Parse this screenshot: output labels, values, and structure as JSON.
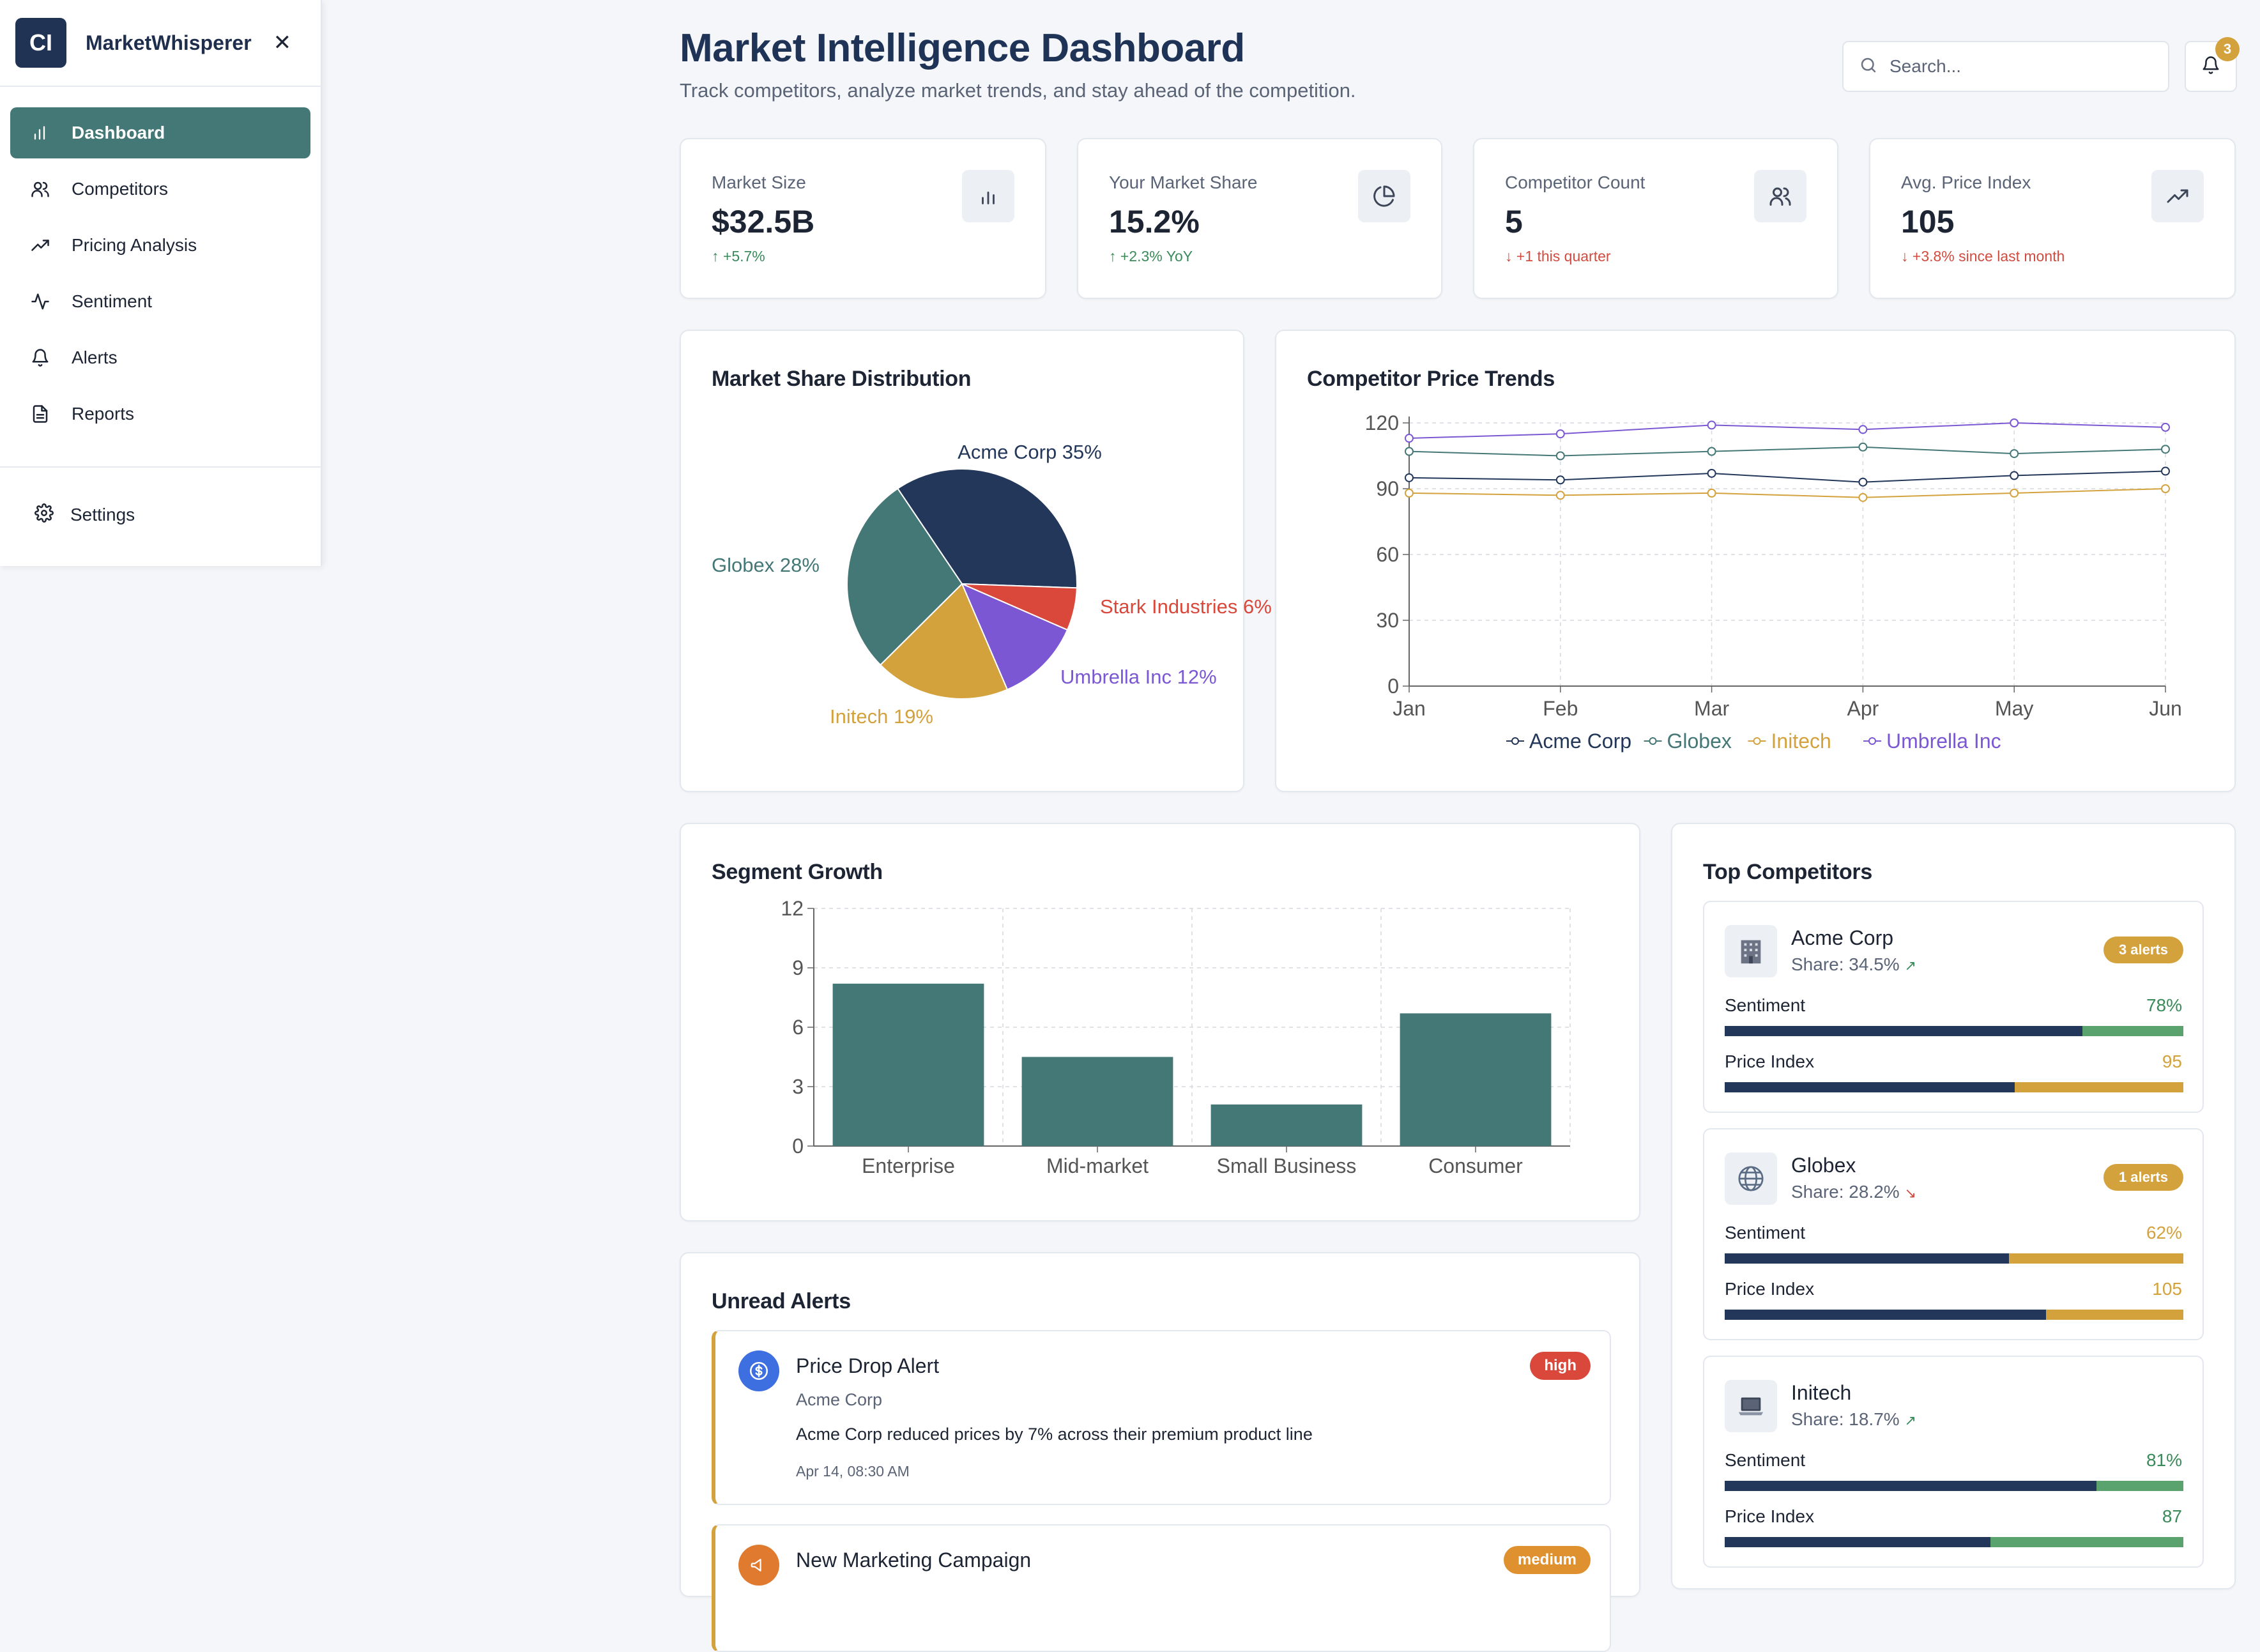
{
  "sidebar": {
    "logo_text": "CI",
    "brand": "MarketWhisperer",
    "close_icon": "close-icon",
    "items": [
      {
        "label": "Dashboard",
        "icon": "bar-chart-icon",
        "active": true
      },
      {
        "label": "Competitors",
        "icon": "users-icon"
      },
      {
        "label": "Pricing Analysis",
        "icon": "trending-up-icon"
      },
      {
        "label": "Sentiment",
        "icon": "activity-icon"
      },
      {
        "label": "Alerts",
        "icon": "bell-icon"
      },
      {
        "label": "Reports",
        "icon": "document-icon"
      }
    ],
    "settings_label": "Settings"
  },
  "header": {
    "title": "Market Intelligence Dashboard",
    "subtitle": "Track competitors, analyze market trends, and stay ahead of the competition.",
    "search_placeholder": "Search...",
    "notification_count": "3"
  },
  "kpis": [
    {
      "label": "Market Size",
      "value": "$32.5B",
      "change": "↑ +5.7%",
      "direction": "up",
      "icon": "bar-chart-icon"
    },
    {
      "label": "Your Market Share",
      "value": "15.2%",
      "change": "↑ +2.3% YoY",
      "direction": "up",
      "icon": "pie-chart-icon"
    },
    {
      "label": "Competitor Count",
      "value": "5",
      "change": "↓ +1 this quarter",
      "direction": "down",
      "icon": "users-icon"
    },
    {
      "label": "Avg. Price Index",
      "value": "105",
      "change": "↓ +3.8% since last month",
      "direction": "down",
      "icon": "trending-up-icon"
    }
  ],
  "market_share": {
    "title": "Market Share Distribution",
    "labels": [
      "Acme Corp 35%",
      "Globex 28%",
      "Initech 19%",
      "Umbrella Inc 12%",
      "Stark Industries 6%"
    ]
  },
  "price_trends": {
    "title": "Competitor Price Trends"
  },
  "segment_growth": {
    "title": "Segment Growth"
  },
  "chart_data": [
    {
      "type": "pie",
      "title": "Market Share Distribution",
      "categories": [
        "Acme Corp",
        "Globex",
        "Initech",
        "Umbrella Inc",
        "Stark Industries"
      ],
      "values": [
        35,
        28,
        19,
        12,
        6
      ],
      "colors": [
        "#22375a",
        "#447876",
        "#d4a23d",
        "#7b57d3",
        "#d9483b"
      ]
    },
    {
      "type": "line",
      "title": "Competitor Price Trends",
      "x": [
        "Jan",
        "Feb",
        "Mar",
        "Apr",
        "May",
        "Jun"
      ],
      "ylim": [
        0,
        120
      ],
      "yticks": [
        0,
        30,
        60,
        90,
        120
      ],
      "grid": true,
      "legend": "bottom",
      "series": [
        {
          "name": "Acme Corp",
          "color": "#22375a",
          "values": [
            95,
            94,
            97,
            93,
            96,
            98
          ]
        },
        {
          "name": "Globex",
          "color": "#447876",
          "values": [
            107,
            105,
            107,
            109,
            106,
            108
          ]
        },
        {
          "name": "Initech",
          "color": "#d4a23d",
          "values": [
            88,
            87,
            88,
            86,
            88,
            90
          ]
        },
        {
          "name": "Umbrella Inc",
          "color": "#7b57d3",
          "values": [
            113,
            115,
            119,
            117,
            120,
            118
          ]
        }
      ]
    },
    {
      "type": "bar",
      "title": "Segment Growth",
      "categories": [
        "Enterprise",
        "Mid-market",
        "Small Business",
        "Consumer"
      ],
      "values": [
        8.2,
        4.5,
        2.1,
        6.7
      ],
      "ylim": [
        0,
        12
      ],
      "yticks": [
        0,
        3,
        6,
        9,
        12
      ],
      "grid": true,
      "color": "#447876"
    }
  ],
  "top_competitors": {
    "title": "Top Competitors",
    "items": [
      {
        "name": "Acme Corp",
        "share": "Share: 34.5%",
        "trend": "↗",
        "trend_color": "#3a8a5a",
        "icon": "building-icon",
        "badge": "3 alerts",
        "sentiment_label": "Sentiment",
        "sentiment_value": "78%",
        "sentiment": 0.78,
        "sentiment_color": "#5aa36e",
        "price_label": "Price Index",
        "price_value": "95",
        "price": 0.633,
        "price_color": "#d4a23d"
      },
      {
        "name": "Globex",
        "share": "Share: 28.2%",
        "trend": "↘",
        "trend_color": "#d14b3e",
        "icon": "globe-icon",
        "badge": "1 alerts",
        "sentiment_label": "Sentiment",
        "sentiment_value": "62%",
        "sentiment": 0.62,
        "sentiment_color": "#d4a23d",
        "price_label": "Price Index",
        "price_value": "105",
        "price": 0.7,
        "price_color": "#d4a23d"
      },
      {
        "name": "Initech",
        "share": "Share: 18.7%",
        "trend": "↗",
        "trend_color": "#3a8a5a",
        "icon": "laptop-icon",
        "badge": "",
        "sentiment_label": "Sentiment",
        "sentiment_value": "81%",
        "sentiment": 0.81,
        "sentiment_color": "#5aa36e",
        "price_label": "Price Index",
        "price_value": "87",
        "price": 0.58,
        "price_color": "#5aa36e"
      }
    ]
  },
  "alerts": {
    "title": "Unread Alerts",
    "items": [
      {
        "title": "Price Drop Alert",
        "company": "Acme Corp",
        "description": "Acme Corp reduced prices by 7% across their premium product line",
        "time": "Apr 14, 08:30 AM",
        "severity": "high",
        "severity_color": "#d9483b",
        "icon": "dollar-icon",
        "icon_color": "#3d6fe0"
      },
      {
        "title": "New Marketing Campaign",
        "company": "",
        "description": "",
        "time": "",
        "severity": "medium",
        "severity_color": "#e0912f",
        "icon": "megaphone-icon",
        "icon_color": "#e07a2f"
      }
    ]
  }
}
